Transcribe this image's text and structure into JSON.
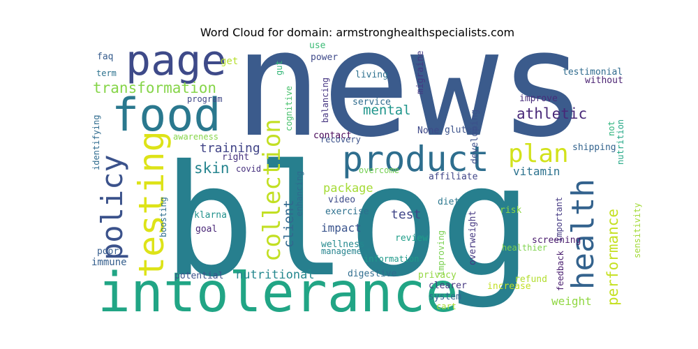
{
  "chart_data": {
    "type": "wordcloud",
    "title": "Word Cloud for domain: armstronghealthspecialists.com",
    "background": "#ffffff",
    "colormap": "viridis",
    "words": [
      {
        "text": "news",
        "color": "#3b5b8c"
      },
      {
        "text": "blog",
        "color": "#277f8e"
      },
      {
        "text": "intolerance",
        "color": "#21a585"
      },
      {
        "text": "page",
        "color": "#3e4a89"
      },
      {
        "text": "food",
        "color": "#2a788e"
      },
      {
        "text": "product",
        "color": "#2e6e8e"
      },
      {
        "text": "testing",
        "color": "#dde318"
      },
      {
        "text": "policy",
        "color": "#3b528b"
      },
      {
        "text": "health",
        "color": "#33628d"
      },
      {
        "text": "collection",
        "color": "#c2df23"
      },
      {
        "text": "plan",
        "color": "#d2e21b"
      },
      {
        "text": "transformation",
        "color": "#86d549"
      },
      {
        "text": "athletic",
        "color": "#482878"
      },
      {
        "text": "mental",
        "color": "#1f958b"
      },
      {
        "text": "performance",
        "color": "#c5e021"
      },
      {
        "text": "skin",
        "color": "#25848e"
      },
      {
        "text": "training",
        "color": "#414487"
      },
      {
        "text": "client",
        "color": "#31688e"
      },
      {
        "text": "vitamin",
        "color": "#2c728e"
      },
      {
        "text": "package",
        "color": "#a5db36"
      },
      {
        "text": "test",
        "color": "#404688"
      },
      {
        "text": "impact",
        "color": "#3a548c"
      },
      {
        "text": "nutritional",
        "color": "#24878e"
      },
      {
        "text": "weight",
        "color": "#90d743"
      },
      {
        "text": "immune",
        "color": "#355f8d"
      },
      {
        "text": "faq",
        "color": "#365c8d"
      },
      {
        "text": "term",
        "color": "#2c728e"
      },
      {
        "text": "get",
        "color": "#b5de2b"
      },
      {
        "text": "use",
        "color": "#3bbb75"
      },
      {
        "text": "power",
        "color": "#3e4989"
      },
      {
        "text": "living",
        "color": "#2d708e"
      },
      {
        "text": "migraine",
        "color": "#443983"
      },
      {
        "text": "testimonial",
        "color": "#2f6b8e"
      },
      {
        "text": "without",
        "color": "#481f70"
      },
      {
        "text": "improve",
        "color": "#472c7a"
      },
      {
        "text": "program",
        "color": "#3f4788"
      },
      {
        "text": "gut",
        "color": "#35b779"
      },
      {
        "text": "cognitive",
        "color": "#4ac16d"
      },
      {
        "text": "balancing",
        "color": "#453581"
      },
      {
        "text": "service",
        "color": "#2f6c8e"
      },
      {
        "text": "None",
        "color": "#3e4989"
      },
      {
        "text": "gluten",
        "color": "#3b528b"
      },
      {
        "text": "developing",
        "color": "#3c4f8a"
      },
      {
        "text": "not",
        "color": "#2fb47c"
      },
      {
        "text": "nutrition",
        "color": "#22a785"
      },
      {
        "text": "identifying",
        "color": "#2f6b8e"
      },
      {
        "text": "awareness",
        "color": "#86d549"
      },
      {
        "text": "contact",
        "color": "#440154"
      },
      {
        "text": "recovery",
        "color": "#3b528b"
      },
      {
        "text": "right",
        "color": "#46327e"
      },
      {
        "text": "shipping",
        "color": "#33638d"
      },
      {
        "text": "covid",
        "color": "#46307e"
      },
      {
        "text": "overcome",
        "color": "#75d054"
      },
      {
        "text": "affiliate",
        "color": "#404588"
      },
      {
        "text": "enhancing",
        "color": "#306a8e"
      },
      {
        "text": "diet",
        "color": "#2a778e"
      },
      {
        "text": "boosting",
        "color": "#2e6e8e"
      },
      {
        "text": "klarna",
        "color": "#21918c"
      },
      {
        "text": "video",
        "color": "#3e4c8a"
      },
      {
        "text": "exercise",
        "color": "#2d708e"
      },
      {
        "text": "risk",
        "color": "#8bd646"
      },
      {
        "text": "important",
        "color": "#443983"
      },
      {
        "text": "sensitivity",
        "color": "#a2da37"
      },
      {
        "text": "goal",
        "color": "#482576"
      },
      {
        "text": "poor",
        "color": "#365d8d"
      },
      {
        "text": "wellness",
        "color": "#23898e"
      },
      {
        "text": "management",
        "color": "#25838e"
      },
      {
        "text": "review",
        "color": "#1f9e89"
      },
      {
        "text": "improving",
        "color": "#7ad151"
      },
      {
        "text": "overweight",
        "color": "#453781"
      },
      {
        "text": "screening",
        "color": "#481a6c"
      },
      {
        "text": "healthier",
        "color": "#7fd34e"
      },
      {
        "text": "potential",
        "color": "#3b528b"
      },
      {
        "text": "digestive",
        "color": "#2f6c8e"
      },
      {
        "text": "privacy",
        "color": "#93d741"
      },
      {
        "text": "refund",
        "color": "#b2dd2d"
      },
      {
        "text": "feedback",
        "color": "#481c6e"
      },
      {
        "text": "clearer",
        "color": "#453882"
      },
      {
        "text": "increase",
        "color": "#c2df23"
      },
      {
        "text": "system",
        "color": "#32648e"
      },
      {
        "text": "cart",
        "color": "#a8db34"
      },
      {
        "text": "information",
        "color": "#1f9a8a"
      }
    ]
  }
}
